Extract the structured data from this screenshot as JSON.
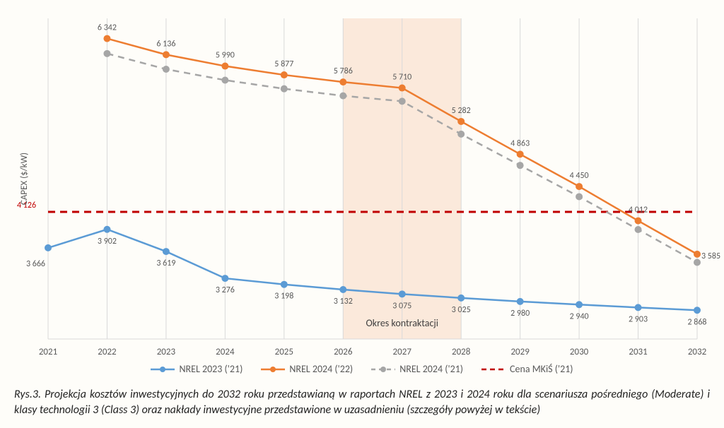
{
  "chart": {
    "type": "line",
    "y_axis_label": "CAPEX ($/kW)",
    "label_fontsize": 13,
    "datalabel_fontsize": 12,
    "tick_fontsize": 13,
    "text_color": "#595959",
    "years": [
      2021,
      2022,
      2023,
      2024,
      2025,
      2026,
      2027,
      2028,
      2029,
      2030,
      2031,
      2032
    ],
    "xlim": [
      2021,
      2032
    ],
    "ylim": [
      2500,
      6600
    ],
    "grid_color": "#d9d9d9",
    "background_color": "#ffffff",
    "shaded_region": {
      "x_start": 2026,
      "x_end": 2028,
      "label": "Okres kontraktacji",
      "color": "#f7d8c3",
      "opacity": 0.55
    },
    "reference_line": {
      "value": 4126,
      "label": "4 126",
      "color": "#c00000",
      "dash": "10,7",
      "width": 3
    },
    "series": [
      {
        "id": "nrel2023_21",
        "name": "NREL 2023 ('21)",
        "color": "#5b9bd5",
        "width": 2.5,
        "marker": "circle",
        "marker_size": 5,
        "dash": "none",
        "labels_above": false,
        "values": [
          3666,
          3902,
          3619,
          3276,
          3198,
          3132,
          3075,
          3025,
          2980,
          2940,
          2903,
          2868
        ]
      },
      {
        "id": "nrel2024_22",
        "name": "NREL 2024 ('22)",
        "color": "#ed7d31",
        "width": 2.5,
        "marker": "circle",
        "marker_size": 5,
        "dash": "none",
        "labels_above": true,
        "values": [
          null,
          6342,
          6136,
          5990,
          5877,
          5786,
          5710,
          5282,
          4863,
          4450,
          4012,
          3585
        ]
      },
      {
        "id": "nrel2024_21",
        "name": "NREL 2024 ('21)",
        "color": "#a6a6a6",
        "width": 2.5,
        "marker": "circle",
        "marker_size": 5,
        "dash": "9,7",
        "labels_above": false,
        "values": [
          null,
          6150,
          5950,
          5810,
          5700,
          5610,
          5540,
          5120,
          4720,
          4320,
          3900,
          3480
        ]
      }
    ],
    "legend_items": [
      {
        "ref": "nrel2023_21",
        "label": "NREL 2023 ('21)"
      },
      {
        "ref": "nrel2024_22",
        "label": "NREL 2024 ('22)"
      },
      {
        "ref": "nrel2024_21",
        "label": "NREL 2024 ('21)"
      },
      {
        "ref": "cena",
        "label": "Cena MKiŚ ('21)"
      }
    ]
  },
  "caption": "Rys.3.  Projekcja kosztów inwestycyjnych do 2032 roku przedstawianą w raportach NREL z 2023 i 2024 roku dla scenariusza pośredniego (Moderate) i klasy technologii 3 (Class 3) oraz nakłady inwestycyjne przedstawione w uzasadnieniu (szczegóły powyżej w tekście)"
}
